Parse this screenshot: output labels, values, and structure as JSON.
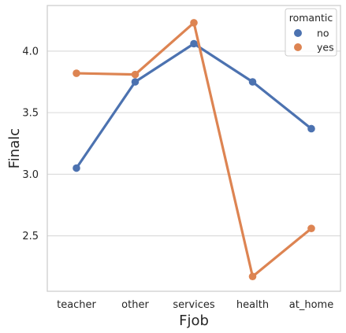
{
  "chart_data": {
    "type": "line",
    "title": "",
    "xlabel": "Fjob",
    "ylabel": "Finalc",
    "categories": [
      "teacher",
      "other",
      "services",
      "health",
      "at_home"
    ],
    "ylim": [
      2.05,
      4.37
    ],
    "yticks": [
      2.5,
      3.0,
      3.5,
      4.0
    ],
    "ytick_labels": [
      "2.5",
      "3.0",
      "3.5",
      "4.0"
    ],
    "grid": "horizontal",
    "legend": {
      "title": "romantic",
      "placement": "top-right"
    },
    "series": [
      {
        "name": "no",
        "color": "#4c72b0",
        "values": [
          3.05,
          3.75,
          4.06,
          3.75,
          3.37
        ]
      },
      {
        "name": "yes",
        "color": "#dd8452",
        "values": [
          3.82,
          3.81,
          4.23,
          2.17,
          2.56
        ]
      }
    ]
  }
}
